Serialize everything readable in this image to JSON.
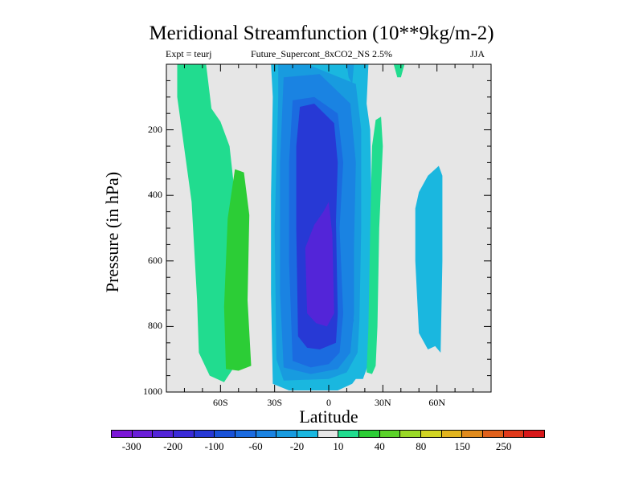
{
  "title": "Meridional Streamfunction (10**9kg/m-2)",
  "subtitle_center": "Future_Supercont_8xCO2_NS 2.5%",
  "subtitle_left": "Expt = teurj",
  "subtitle_right": "JJA",
  "chart_data": {
    "type": "contour",
    "xlabel": "Latitude",
    "ylabel": "Pressure (in hPa)",
    "xlim": [
      -90,
      90
    ],
    "ylim": [
      1000,
      0
    ],
    "x_ticks": [
      {
        "value": -60,
        "label": "60S"
      },
      {
        "value": -30,
        "label": "30S"
      },
      {
        "value": 0,
        "label": "0"
      },
      {
        "value": 30,
        "label": "30N"
      },
      {
        "value": 60,
        "label": "60N"
      }
    ],
    "y_ticks": [
      {
        "value": 200,
        "label": "200"
      },
      {
        "value": 400,
        "label": "400"
      },
      {
        "value": 600,
        "label": "600"
      },
      {
        "value": 800,
        "label": "800"
      },
      {
        "value": 1000,
        "label": "1000"
      }
    ],
    "colorbar": {
      "colors": [
        "#7b16d7",
        "#6a1ed8",
        "#5325d8",
        "#3a2bd8",
        "#2739d5",
        "#1952d8",
        "#1b6be0",
        "#1a83e2",
        "#189bdf",
        "#1ab7df",
        "#e6e6e6",
        "#21dc8f",
        "#2ccd36",
        "#5bd22a",
        "#9ad927",
        "#d2d524",
        "#e1b41f",
        "#e08b1d",
        "#e0611c",
        "#e0391b",
        "#d8181a"
      ],
      "labels": [
        "-300",
        "-200",
        "-100",
        "-60",
        "-20",
        "10",
        "40",
        "80",
        "150",
        "250"
      ]
    },
    "regions": [
      {
        "level": 10,
        "color": "#21dc8f",
        "points": [
          [
            -84,
            0
          ],
          [
            -68,
            0
          ],
          [
            -65,
            135
          ],
          [
            -60,
            175
          ],
          [
            -55,
            250
          ],
          [
            -52,
            400
          ],
          [
            -54,
            600
          ],
          [
            -52,
            800
          ],
          [
            -52,
            920
          ],
          [
            -58,
            970
          ],
          [
            -66,
            950
          ],
          [
            -72,
            880
          ],
          [
            -73,
            720
          ],
          [
            -76,
            420
          ],
          [
            -84,
            100
          ]
        ]
      },
      {
        "level": 40,
        "color": "#2ccd36",
        "points": [
          [
            -58,
            740
          ],
          [
            -56,
            470
          ],
          [
            -52,
            320
          ],
          [
            -47,
            330
          ],
          [
            -44,
            460
          ],
          [
            -45,
            720
          ],
          [
            -43,
            920
          ],
          [
            -50,
            935
          ],
          [
            -57,
            930
          ]
        ]
      },
      {
        "level": -20,
        "color": "#1ab7df",
        "points": [
          [
            -32,
            0
          ],
          [
            22,
            0
          ],
          [
            21,
            120
          ],
          [
            23,
            200
          ],
          [
            24,
            500
          ],
          [
            23,
            780
          ],
          [
            23,
            880
          ],
          [
            21,
            930
          ],
          [
            19,
            960
          ],
          [
            15,
            960
          ],
          [
            13,
            975
          ],
          [
            5,
            995
          ],
          [
            -22,
            995
          ],
          [
            -31,
            975
          ],
          [
            -32,
            700
          ],
          [
            -32,
            400
          ],
          [
            -31,
            100
          ]
        ]
      },
      {
        "level": -60,
        "color": "#189bdf",
        "points": [
          [
            -28,
            0
          ],
          [
            -12,
            0
          ],
          [
            15,
            60
          ],
          [
            18,
            200
          ],
          [
            18,
            500
          ],
          [
            17,
            780
          ],
          [
            16,
            880
          ],
          [
            10,
            940
          ],
          [
            0,
            960
          ],
          [
            -25,
            965
          ],
          [
            -29,
            900
          ],
          [
            -30,
            500
          ],
          [
            -28,
            100
          ]
        ]
      },
      {
        "level": -100,
        "color": "#1a83e2",
        "points": [
          [
            -25,
            40
          ],
          [
            -5,
            30
          ],
          [
            12,
            120
          ],
          [
            15,
            300
          ],
          [
            14,
            560
          ],
          [
            14,
            760
          ],
          [
            12,
            880
          ],
          [
            5,
            930
          ],
          [
            -10,
            945
          ],
          [
            -25,
            925
          ],
          [
            -27,
            700
          ],
          [
            -27,
            300
          ]
        ]
      },
      {
        "level": -100,
        "color": "#1b6be0",
        "points": [
          [
            -20,
            110
          ],
          [
            -8,
            100
          ],
          [
            5,
            150
          ],
          [
            8,
            300
          ],
          [
            6,
            500
          ],
          [
            8,
            760
          ],
          [
            6,
            880
          ],
          [
            0,
            915
          ],
          [
            -10,
            925
          ],
          [
            -20,
            905
          ],
          [
            -22,
            600
          ],
          [
            -22,
            300
          ]
        ]
      },
      {
        "level": -200,
        "color": "#2739d5",
        "points": [
          [
            -16,
            130
          ],
          [
            -8,
            120
          ],
          [
            3,
            180
          ],
          [
            5,
            300
          ],
          [
            4,
            480
          ],
          [
            5,
            760
          ],
          [
            4,
            850
          ],
          [
            -5,
            870
          ],
          [
            -12,
            865
          ],
          [
            -17,
            830
          ],
          [
            -18,
            500
          ],
          [
            -18,
            250
          ]
        ]
      },
      {
        "level": -300,
        "color": "#5325d8",
        "points": [
          [
            -3,
            450
          ],
          [
            0,
            420
          ],
          [
            2,
            520
          ],
          [
            3,
            760
          ],
          [
            -1,
            800
          ],
          [
            -7,
            790
          ],
          [
            -12,
            760
          ],
          [
            -13,
            560
          ],
          [
            -8,
            490
          ]
        ]
      },
      {
        "level": 10,
        "color": "#21dc8f",
        "points": [
          [
            26,
            170
          ],
          [
            29,
            160
          ],
          [
            30,
            250
          ],
          [
            28,
            500
          ],
          [
            27,
            800
          ],
          [
            26,
            920
          ],
          [
            24,
            945
          ],
          [
            21,
            940
          ],
          [
            22,
            800
          ],
          [
            23,
            500
          ],
          [
            24,
            250
          ]
        ]
      },
      {
        "level": 10,
        "color": "#21dc8f",
        "points": [
          [
            36,
            0
          ],
          [
            42,
            0
          ],
          [
            40,
            40
          ],
          [
            38,
            40
          ]
        ]
      },
      {
        "level": -20,
        "color": "#1ab7df",
        "points": [
          [
            50,
            390
          ],
          [
            55,
            340
          ],
          [
            61,
            310
          ],
          [
            63,
            340
          ],
          [
            63,
            600
          ],
          [
            62,
            880
          ],
          [
            59,
            860
          ],
          [
            55,
            870
          ],
          [
            50,
            820
          ],
          [
            48,
            600
          ],
          [
            48,
            440
          ]
        ]
      },
      {
        "level": -60,
        "color": "#189bdf",
        "points": [
          [
            10,
            0
          ],
          [
            14,
            0
          ],
          [
            13,
            60
          ],
          [
            11,
            40
          ]
        ]
      },
      {
        "level": -100,
        "color": "#1a83e2",
        "points": [
          [
            12,
            770
          ],
          [
            14,
            780
          ],
          [
            13,
            800
          ]
        ]
      }
    ]
  }
}
